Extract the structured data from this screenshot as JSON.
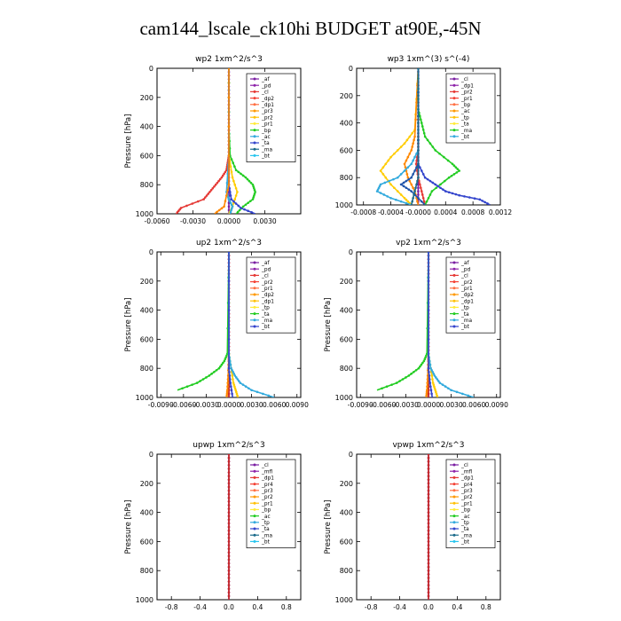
{
  "page_title": "cam144_lscale_ck10hi  BUDGET at90E,-45N",
  "chart_data": [
    {
      "type": "line",
      "title": "wp2  1xm^2/s^3",
      "ylabel": "Pressure [hPa]",
      "xlim": [
        -0.006,
        0.006
      ],
      "ylim": [
        1000,
        0
      ],
      "xticks": [
        "-0.0060",
        "-0.0030",
        "0.0000",
        "0.0030"
      ],
      "yticks": [
        "0",
        "200",
        "400",
        "600",
        "800",
        "1000"
      ],
      "legend": [
        "_af",
        "_pd",
        "_cl",
        "_dp2",
        "_dp1",
        "_pr3",
        "_pr2",
        "_pr1",
        "_bp",
        "_ac",
        "_ta",
        "_ma",
        "_bt"
      ],
      "legend_position": "top-right",
      "series": [
        {
          "name": "_pd",
          "color": "#7a1fa2",
          "x": [
            0,
            0,
            0,
            0,
            0,
            0,
            0,
            0,
            0,
            0,
            0
          ],
          "y": [
            0,
            100,
            200,
            300,
            400,
            500,
            600,
            700,
            800,
            900,
            1000
          ]
        },
        {
          "name": "_dp1",
          "color": "#e53935",
          "x": [
            0,
            0,
            0,
            0,
            0,
            -0.0001,
            -0.0002,
            -0.0006,
            -0.0011,
            -0.0016,
            -0.0021,
            -0.004,
            -0.0044
          ],
          "y": [
            0,
            200,
            400,
            500,
            600,
            650,
            700,
            750,
            800,
            850,
            900,
            960,
            1000
          ]
        },
        {
          "name": "_pr2",
          "color": "#ffcc00",
          "x": [
            0,
            0,
            0,
            0.0003,
            0.0007,
            0.0003,
            0
          ],
          "y": [
            0,
            400,
            600,
            750,
            850,
            950,
            1000
          ]
        },
        {
          "name": "_bp",
          "color": "#22cc22",
          "x": [
            0,
            0,
            0.0001,
            0.0006,
            0.0014,
            0.002,
            0.0022,
            0.002,
            0.0012,
            0.0006
          ],
          "y": [
            0,
            400,
            600,
            700,
            750,
            800,
            850,
            900,
            950,
            1000
          ]
        },
        {
          "name": "_ac",
          "color": "#33aadd",
          "x": [
            0,
            0,
            -0.0002,
            0,
            0.0003,
            0.0001
          ],
          "y": [
            0,
            600,
            850,
            900,
            950,
            1000
          ]
        },
        {
          "name": "_ta",
          "color": "#3344cc",
          "x": [
            0,
            0,
            0.0002,
            0.001,
            0.0022
          ],
          "y": [
            0,
            800,
            900,
            960,
            1000
          ]
        },
        {
          "name": "_pr3",
          "color": "#ff8800",
          "x": [
            0,
            0,
            -0.0004,
            -0.0012
          ],
          "y": [
            0,
            800,
            950,
            1000
          ]
        }
      ]
    },
    {
      "type": "line",
      "title": "wp3  1xm^(3) s^(-4)",
      "ylabel": "",
      "xlim": [
        -0.0009,
        0.0012
      ],
      "ylim": [
        1000,
        0
      ],
      "xticks": [
        "-0.0008",
        "-0.0004",
        "-0.0000",
        "0.0004",
        "0.0008",
        "0.0012"
      ],
      "yticks": [
        "0",
        "200",
        "400",
        "600",
        "800",
        "1000"
      ],
      "legend": [
        "_cl",
        "_dp1",
        "_pr2",
        "_pr1",
        "_bp",
        "_ac",
        "_tp",
        "_ta",
        "_ma",
        "_bt"
      ],
      "legend_position": "top-right",
      "series": [
        {
          "name": "_cl",
          "color": "#7a1fa2",
          "x": [
            0,
            0,
            0,
            0,
            0,
            0,
            0,
            0,
            0,
            0,
            0
          ],
          "y": [
            0,
            100,
            200,
            300,
            400,
            500,
            600,
            700,
            800,
            900,
            1000
          ]
        },
        {
          "name": "_dp1",
          "color": "#e53935",
          "x": [
            0,
            0,
            0,
            -3e-05,
            0,
            5e-05,
            0.0001
          ],
          "y": [
            0,
            500,
            600,
            700,
            800,
            900,
            1000
          ]
        },
        {
          "name": "_pr2",
          "color": "#ffcc00",
          "x": [
            0,
            -5e-05,
            -0.0002,
            -0.0004,
            -0.00055,
            -0.0004,
            -0.0002,
            -0.0001
          ],
          "y": [
            0,
            450,
            550,
            650,
            750,
            850,
            950,
            1000
          ]
        },
        {
          "name": "_pr1",
          "color": "#ff8800",
          "x": [
            0,
            -5e-05,
            -0.0001,
            -0.0002,
            -0.00015,
            -5e-05,
            0
          ],
          "y": [
            0,
            500,
            600,
            700,
            800,
            900,
            1000
          ]
        },
        {
          "name": "_bp",
          "color": "#22cc22",
          "x": [
            0,
            0,
            5e-05,
            0.0001,
            0.00025,
            0.0005,
            0.0006,
            0.00045,
            0.0002,
            0.0001
          ],
          "y": [
            0,
            300,
            400,
            500,
            600,
            700,
            750,
            800,
            900,
            1000
          ]
        },
        {
          "name": "_ac",
          "color": "#33aadd",
          "x": [
            0,
            0,
            -0.0001,
            -0.0003,
            -0.00055,
            -0.0006,
            -0.0004,
            -0.0001
          ],
          "y": [
            0,
            600,
            700,
            800,
            850,
            900,
            950,
            1000
          ]
        },
        {
          "name": "_tp",
          "color": "#3344cc",
          "x": [
            0,
            0,
            0.0001,
            0.00025,
            0.0004,
            0.0006,
            0.0009,
            0.00105
          ],
          "y": [
            0,
            700,
            800,
            850,
            900,
            930,
            960,
            1000
          ]
        },
        {
          "name": "_ta",
          "color": "#2255aa",
          "x": [
            0,
            0,
            -0.0001,
            -0.00025,
            -0.0001,
            0.0001
          ],
          "y": [
            0,
            700,
            800,
            850,
            900,
            1000
          ]
        },
        {
          "name": "_ma",
          "color": "#1a6a8a",
          "x": [
            0,
            0,
            -5e-05,
            -0.0001
          ],
          "y": [
            0,
            800,
            900,
            1000
          ]
        }
      ]
    },
    {
      "type": "line",
      "title": "up2  1xm^2/s^3",
      "ylabel": "Pressure [hPa]",
      "xlim": [
        -0.0095,
        0.0095
      ],
      "ylim": [
        1000,
        0
      ],
      "xticks": [
        "-0.0090",
        "-0.0060",
        "-0.0030",
        "0.0000",
        "0.0030",
        "0.0060",
        "0.0090"
      ],
      "yticks": [
        "0",
        "200",
        "400",
        "600",
        "800",
        "1000"
      ],
      "legend": [
        "_af",
        "_pd",
        "_cl",
        "_pr2",
        "_pr1",
        "_dp2",
        "_dp1",
        "_tp",
        "_ta",
        "_ma",
        "_bt"
      ],
      "legend_position": "top-right",
      "series": [
        {
          "name": "_af",
          "color": "#7a1fa2",
          "x": [
            0,
            0,
            0,
            0,
            0,
            0,
            0,
            0,
            0,
            0,
            0
          ],
          "y": [
            0,
            100,
            200,
            300,
            400,
            500,
            600,
            700,
            800,
            900,
            1000
          ]
        },
        {
          "name": "_cl",
          "color": "#c62828",
          "x": [
            0,
            0,
            0,
            0,
            0,
            0,
            0,
            0,
            0,
            0,
            0
          ],
          "y": [
            0,
            100,
            200,
            300,
            400,
            500,
            600,
            700,
            800,
            900,
            1000
          ]
        },
        {
          "name": "_pr2",
          "color": "#ffcc00",
          "x": [
            0,
            0,
            0.0003,
            0.0006,
            0.0009,
            0.0012
          ],
          "y": [
            0,
            700,
            800,
            900,
            950,
            1000
          ]
        },
        {
          "name": "_pr1",
          "color": "#ff8800",
          "x": [
            0,
            0,
            -0.0001,
            -0.0002,
            -0.0003
          ],
          "y": [
            0,
            700,
            850,
            950,
            1000
          ]
        },
        {
          "name": "_dp1",
          "color": "#22cc22",
          "x": [
            0,
            -0.0002,
            -0.0006,
            -0.0013,
            -0.0026,
            -0.0042,
            -0.0068
          ],
          "y": [
            0,
            700,
            750,
            800,
            850,
            900,
            950
          ]
        },
        {
          "name": "_tp",
          "color": "#33aadd",
          "x": [
            0,
            0,
            0.0003,
            0.0008,
            0.0015,
            0.003,
            0.006
          ],
          "y": [
            0,
            700,
            800,
            850,
            900,
            950,
            1000
          ]
        },
        {
          "name": "_ta",
          "color": "#3344cc",
          "x": [
            0,
            0,
            0.0002,
            0.0005
          ],
          "y": [
            0,
            800,
            900,
            1000
          ]
        }
      ]
    },
    {
      "type": "line",
      "title": "vp2  1xm^2/s^3",
      "ylabel": "Pressure [hPa]",
      "xlim": [
        -0.0095,
        0.0095
      ],
      "ylim": [
        1000,
        0
      ],
      "xticks": [
        "-0.0090",
        "-0.0060",
        "-0.0030",
        "0.0000",
        "0.0030",
        "0.0060",
        "0.0090"
      ],
      "yticks": [
        "0",
        "200",
        "400",
        "600",
        "800",
        "1000"
      ],
      "legend": [
        "_af",
        "_pd",
        "_cl",
        "_pr2",
        "_pr1",
        "_dp2",
        "_dp1",
        "_tp",
        "_ta",
        "_ma",
        "_bt"
      ],
      "legend_position": "top-right",
      "series": [
        {
          "name": "_af",
          "color": "#7a1fa2",
          "x": [
            0,
            0,
            0,
            0,
            0,
            0,
            0,
            0,
            0,
            0,
            0
          ],
          "y": [
            0,
            100,
            200,
            300,
            400,
            500,
            600,
            700,
            800,
            900,
            1000
          ]
        },
        {
          "name": "_cl",
          "color": "#c62828",
          "x": [
            0,
            0,
            0,
            0,
            0,
            0,
            0,
            0,
            0,
            0,
            0
          ],
          "y": [
            0,
            100,
            200,
            300,
            400,
            500,
            600,
            700,
            800,
            900,
            1000
          ]
        },
        {
          "name": "_pr2",
          "color": "#ffcc00",
          "x": [
            0,
            0,
            0.0003,
            0.0006,
            0.0009,
            0.0012
          ],
          "y": [
            0,
            700,
            800,
            900,
            950,
            1000
          ]
        },
        {
          "name": "_pr1",
          "color": "#ff8800",
          "x": [
            0,
            0,
            -0.0001,
            -0.0002,
            -0.0003
          ],
          "y": [
            0,
            700,
            850,
            950,
            1000
          ]
        },
        {
          "name": "_dp1",
          "color": "#22cc22",
          "x": [
            0,
            -0.0002,
            -0.0006,
            -0.0013,
            -0.0026,
            -0.0042,
            -0.0068
          ],
          "y": [
            0,
            700,
            750,
            800,
            850,
            900,
            950
          ]
        },
        {
          "name": "_tp",
          "color": "#33aadd",
          "x": [
            0,
            0,
            0.0003,
            0.0008,
            0.0015,
            0.003,
            0.006
          ],
          "y": [
            0,
            700,
            800,
            850,
            900,
            950,
            1000
          ]
        },
        {
          "name": "_ta",
          "color": "#3344cc",
          "x": [
            0,
            0,
            0.0002,
            0.0005
          ],
          "y": [
            0,
            800,
            900,
            1000
          ]
        }
      ]
    },
    {
      "type": "line",
      "title": "upwp  1xm^2/s^3",
      "ylabel": "Pressure [hPa]",
      "xlim": [
        -1.0,
        1.0
      ],
      "ylim": [
        1000,
        0
      ],
      "xticks": [
        "-0.8",
        "-0.4",
        "0.0",
        "0.4",
        "0.8"
      ],
      "yticks": [
        "0",
        "200",
        "400",
        "600",
        "800",
        "1000"
      ],
      "legend": [
        "_cl",
        "_mfl",
        "_dp1",
        "_pr4",
        "_pr3",
        "_pr2",
        "_pr1",
        "_bp",
        "_ac",
        "_tp",
        "_ta",
        "_ma",
        "_bt"
      ],
      "legend_position": "top-right",
      "series": [
        {
          "name": "_cl",
          "color": "#7a1fa2",
          "x": [
            0,
            0,
            0,
            0,
            0,
            0,
            0,
            0,
            0,
            0,
            0
          ],
          "y": [
            0,
            100,
            200,
            300,
            400,
            500,
            600,
            700,
            800,
            900,
            1000
          ]
        },
        {
          "name": "_dp1",
          "color": "#c62828",
          "x": [
            0,
            0,
            0,
            0,
            0,
            0,
            0,
            0,
            0,
            0,
            0
          ],
          "y": [
            0,
            100,
            200,
            300,
            400,
            500,
            600,
            700,
            800,
            900,
            1000
          ]
        }
      ]
    },
    {
      "type": "line",
      "title": "vpwp  1xm^2/s^3",
      "ylabel": "Pressure [hPa]",
      "xlim": [
        -1.0,
        1.0
      ],
      "ylim": [
        1000,
        0
      ],
      "xticks": [
        "-0.8",
        "-0.4",
        "0.0",
        "0.4",
        "0.8"
      ],
      "yticks": [
        "0",
        "200",
        "400",
        "600",
        "800",
        "1000"
      ],
      "legend": [
        "_cl",
        "_mfl",
        "_dp1",
        "_pr4",
        "_pr3",
        "_pr2",
        "_pr1",
        "_bp",
        "_ac",
        "_tp",
        "_ta",
        "_ma",
        "_bt"
      ],
      "legend_position": "top-right",
      "series": [
        {
          "name": "_cl",
          "color": "#7a1fa2",
          "x": [
            0,
            0,
            0,
            0,
            0,
            0,
            0,
            0,
            0,
            0,
            0
          ],
          "y": [
            0,
            100,
            200,
            300,
            400,
            500,
            600,
            700,
            800,
            900,
            1000
          ]
        },
        {
          "name": "_dp1",
          "color": "#c62828",
          "x": [
            0,
            0,
            0,
            0,
            0,
            0,
            0,
            0,
            0,
            0,
            0
          ],
          "y": [
            0,
            100,
            200,
            300,
            400,
            500,
            600,
            700,
            800,
            900,
            1000
          ]
        }
      ]
    }
  ]
}
